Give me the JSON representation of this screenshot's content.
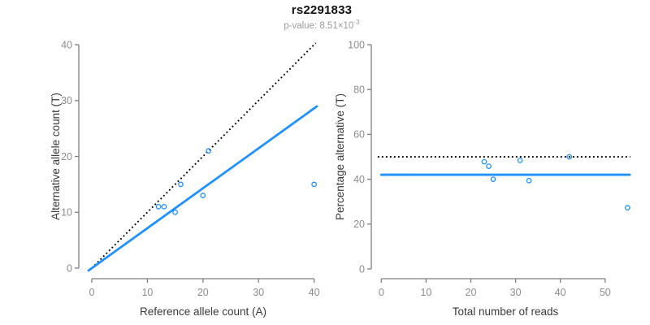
{
  "header": {
    "title": "rs2291833",
    "pvalue_label": "p-value: 8.51×10",
    "pvalue_exponent": "-3"
  },
  "colors": {
    "accent_blue": "#1E90FF",
    "dotted_black": "#000000",
    "axis_gray": "#7e7e7e",
    "tick_label_gray": "#8c8c8c",
    "axis_title_gray": "#3a3a3a",
    "subtitle_gray": "#9a9a9a"
  },
  "chart_data": [
    {
      "type": "scatter",
      "name": "allele-counts",
      "xlabel": "Reference allele count (A)",
      "ylabel": "Alternative allele count (T)",
      "xlim": [
        0,
        40
      ],
      "ylim": [
        0,
        40
      ],
      "xticks": [
        0,
        10,
        20,
        30,
        40
      ],
      "yticks": [
        0,
        10,
        20,
        30,
        40
      ],
      "grid": false,
      "legend": null,
      "points": [
        [
          12,
          11
        ],
        [
          13,
          11
        ],
        [
          15,
          10
        ],
        [
          16,
          15
        ],
        [
          20,
          13
        ],
        [
          21,
          21
        ],
        [
          40,
          15
        ]
      ],
      "lines": [
        {
          "name": "identity-line",
          "slope": 1,
          "intercept": 0,
          "style": "dotted",
          "color": "black"
        },
        {
          "name": "fitted-ratio-line",
          "slope": 0.715,
          "intercept": 0,
          "style": "solid",
          "color": "blue"
        }
      ]
    },
    {
      "type": "scatter",
      "name": "percentage-alternative",
      "xlabel": "Total number of reads",
      "ylabel": "Percentage alternative (T)",
      "xlim": [
        0,
        50
      ],
      "ylim": [
        0,
        100
      ],
      "xticks": [
        0,
        10,
        20,
        30,
        40,
        50
      ],
      "yticks": [
        0,
        20,
        40,
        60,
        80,
        100
      ],
      "grid": false,
      "legend": null,
      "points": [
        [
          23,
          47.8
        ],
        [
          24,
          45.8
        ],
        [
          25,
          40
        ],
        [
          31,
          48.4
        ],
        [
          33,
          39.4
        ],
        [
          42,
          50
        ],
        [
          55,
          27.3
        ]
      ],
      "lines": [
        {
          "name": "expected-50pct-line",
          "y": 50,
          "style": "dotted",
          "color": "black"
        },
        {
          "name": "fitted-percentage-line",
          "y": 42,
          "style": "solid",
          "color": "blue"
        }
      ]
    }
  ]
}
